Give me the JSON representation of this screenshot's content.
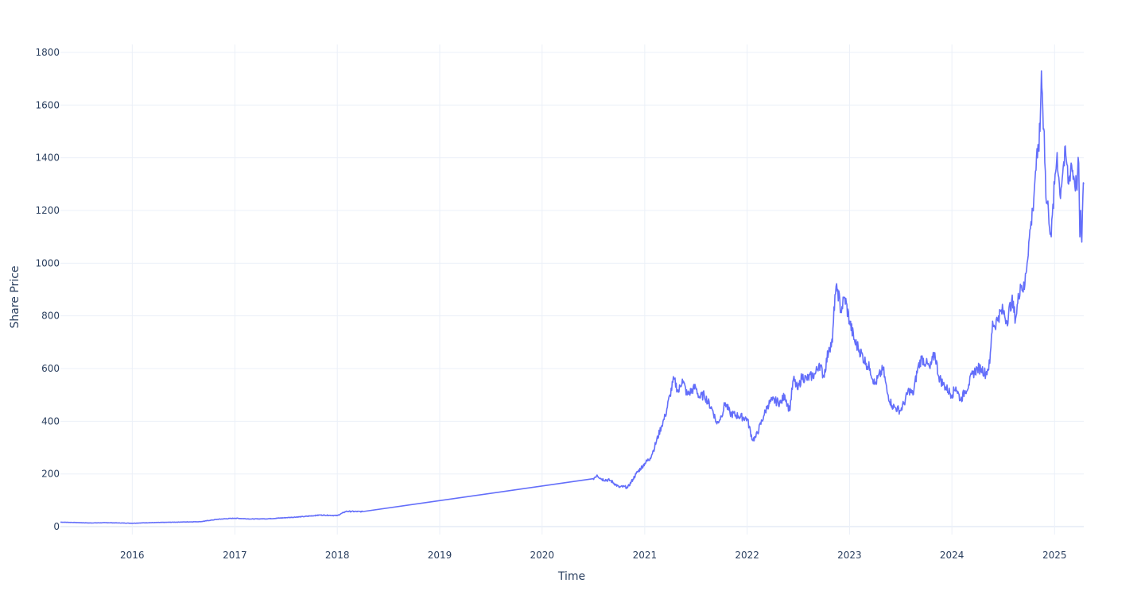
{
  "chart_data": {
    "type": "line",
    "xlabel": "Time",
    "ylabel": "Share Price",
    "x_range": [
      "2015-04-20",
      "2025-04-15"
    ],
    "ylim": [
      -30,
      1830
    ],
    "y_ticks": [
      0,
      200,
      400,
      600,
      800,
      1000,
      1200,
      1400,
      1600,
      1800
    ],
    "x_ticks": [
      {
        "date": "2016-01-01",
        "label": "2016"
      },
      {
        "date": "2017-01-01",
        "label": "2017"
      },
      {
        "date": "2018-01-01",
        "label": "2018"
      },
      {
        "date": "2019-01-01",
        "label": "2019"
      },
      {
        "date": "2020-01-01",
        "label": "2020"
      },
      {
        "date": "2021-01-01",
        "label": "2021"
      },
      {
        "date": "2022-01-01",
        "label": "2022"
      },
      {
        "date": "2023-01-01",
        "label": "2023"
      },
      {
        "date": "2024-01-01",
        "label": "2024"
      },
      {
        "date": "2025-01-01",
        "label": "2025"
      }
    ],
    "grid": true,
    "line_color": "#636efa",
    "series": [
      {
        "x": [
          "2015-04-20",
          "2015-06-01",
          "2015-08-01",
          "2015-10-01",
          "2016-01-01",
          "2016-03-01",
          "2016-06-01",
          "2016-09-01",
          "2016-11-01",
          "2017-01-01",
          "2017-03-01",
          "2017-05-01",
          "2017-07-01",
          "2017-09-01",
          "2017-11-01",
          "2018-01-01",
          "2018-02-01",
          "2018-04-01",
          "2020-07-01",
          "2020-07-15",
          "2020-08-01",
          "2020-09-01",
          "2020-10-01",
          "2020-10-20",
          "2020-11-01",
          "2020-11-20",
          "2020-12-01",
          "2021-01-01",
          "2021-01-20",
          "2021-02-01",
          "2021-03-01",
          "2021-03-15",
          "2021-04-01",
          "2021-04-15",
          "2021-05-01",
          "2021-05-15",
          "2021-06-01",
          "2021-07-01",
          "2021-07-15",
          "2021-08-01",
          "2021-09-01",
          "2021-09-15",
          "2021-10-01",
          "2021-10-15",
          "2021-11-01",
          "2021-12-01",
          "2022-01-01",
          "2022-01-20",
          "2022-02-01",
          "2022-03-01",
          "2022-03-15",
          "2022-04-01",
          "2022-05-01",
          "2022-05-15",
          "2022-06-01",
          "2022-06-15",
          "2022-07-01",
          "2022-07-15",
          "2022-08-01",
          "2022-09-01",
          "2022-09-15",
          "2022-10-01",
          "2022-10-20",
          "2022-11-01",
          "2022-11-10",
          "2022-11-20",
          "2022-12-01",
          "2022-12-15",
          "2023-01-01",
          "2023-01-20",
          "2023-02-01",
          "2023-03-01",
          "2023-03-15",
          "2023-04-01",
          "2023-05-01",
          "2023-05-15",
          "2023-06-01",
          "2023-06-15",
          "2023-07-01",
          "2023-07-15",
          "2023-08-01",
          "2023-08-15",
          "2023-09-01",
          "2023-09-15",
          "2023-10-01",
          "2023-10-15",
          "2023-11-01",
          "2023-11-15",
          "2023-12-01",
          "2024-01-01",
          "2024-01-15",
          "2024-02-01",
          "2024-02-15",
          "2024-03-01",
          "2024-03-15",
          "2024-04-01",
          "2024-04-15",
          "2024-05-01",
          "2024-05-15",
          "2024-05-25",
          "2024-06-01",
          "2024-06-15",
          "2024-07-01",
          "2024-07-15",
          "2024-08-01",
          "2024-08-15",
          "2024-09-01",
          "2024-09-15",
          "2024-10-01",
          "2024-10-15",
          "2024-10-25",
          "2024-11-01",
          "2024-11-10",
          "2024-11-15",
          "2024-11-20",
          "2024-11-25",
          "2024-12-01",
          "2024-12-10",
          "2024-12-20",
          "2025-01-01",
          "2025-01-10",
          "2025-01-20",
          "2025-02-01",
          "2025-02-10",
          "2025-02-20",
          "2025-03-01",
          "2025-03-10",
          "2025-03-20",
          "2025-03-28",
          "2025-04-01",
          "2025-04-04",
          "2025-04-08",
          "2025-04-12",
          "2025-04-15"
        ],
        "y": [
          17,
          16,
          14,
          15,
          13,
          15,
          17,
          19,
          28,
          32,
          29,
          30,
          34,
          38,
          44,
          42,
          58,
          57,
          182,
          196,
          180,
          175,
          150,
          152,
          148,
          180,
          200,
          240,
          260,
          290,
          380,
          420,
          500,
          560,
          510,
          560,
          500,
          530,
          490,
          500,
          440,
          390,
          420,
          470,
          430,
          420,
          410,
          330,
          340,
          420,
          460,
          480,
          470,
          500,
          440,
          560,
          520,
          570,
          560,
          580,
          620,
          570,
          680,
          700,
          880,
          900,
          820,
          870,
          780,
          700,
          680,
          620,
          600,
          540,
          600,
          510,
          460,
          450,
          440,
          470,
          520,
          500,
          600,
          640,
          620,
          600,
          660,
          570,
          540,
          500,
          530,
          480,
          510,
          540,
          580,
          600,
          600,
          580,
          620,
          780,
          760,
          800,
          820,
          780,
          860,
          790,
          920,
          900,
          1080,
          1200,
          1350,
          1400,
          1500,
          1730,
          1580,
          1500,
          1250,
          1200,
          1100,
          1300,
          1420,
          1260,
          1370,
          1410,
          1300,
          1380,
          1330,
          1290,
          1380,
          1100,
          1200,
          1080,
          1260,
          1300
        ]
      }
    ]
  }
}
